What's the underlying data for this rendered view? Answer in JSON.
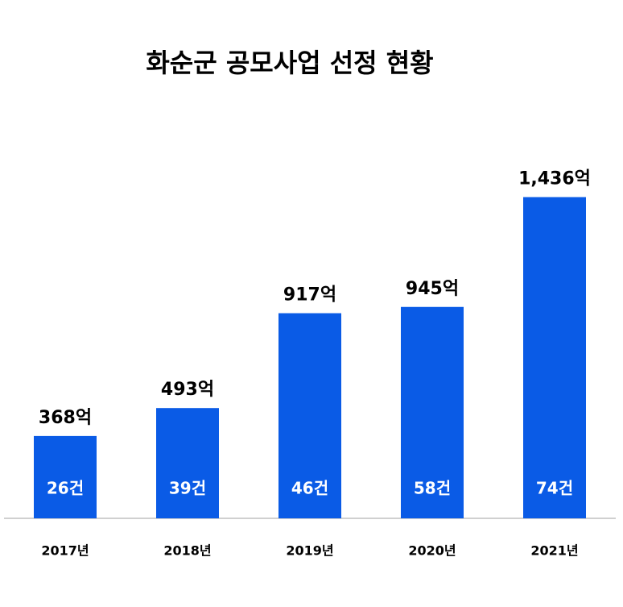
{
  "chart_data": {
    "type": "bar",
    "title": "화순군 공모사업 선정 현황",
    "categories": [
      "2017년",
      "2018년",
      "2019년",
      "2020년",
      "2021년"
    ],
    "values": [
      368,
      493,
      917,
      945,
      1436
    ],
    "value_labels": [
      "368억",
      "493억",
      "917억",
      "945억",
      "1,436억"
    ],
    "counts": [
      26,
      39,
      46,
      58,
      74
    ],
    "count_labels": [
      "26건",
      "39건",
      "46건",
      "58건",
      "74건"
    ],
    "color": "#0a5be6",
    "ylim": [
      0,
      1600
    ]
  }
}
